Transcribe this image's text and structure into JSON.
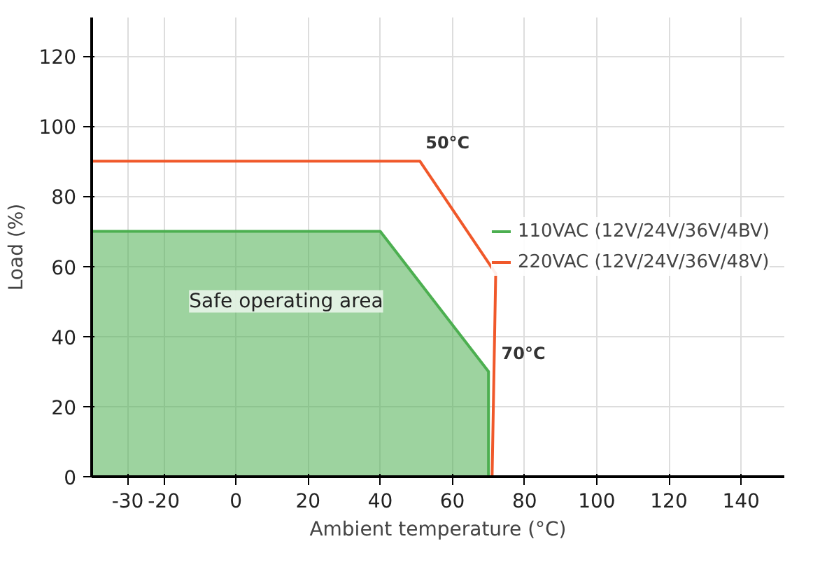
{
  "chart_data": {
    "type": "line",
    "xlabel": "Ambient temperature (°C)",
    "ylabel": "Load (%)",
    "xlim": [
      -40,
      152
    ],
    "ylim": [
      0,
      131
    ],
    "xticks": [
      -30,
      -20,
      0,
      20,
      40,
      60,
      80,
      100,
      120,
      140
    ],
    "yticks": [
      0,
      20,
      40,
      60,
      80,
      100,
      120
    ],
    "grid": true,
    "legend": "right",
    "series": [
      {
        "name": "110VAC (12V/24V/36V/4BV)",
        "type": "area",
        "color": "#4caf50",
        "x": [
          -40,
          40,
          70,
          70
        ],
        "values": [
          70,
          70,
          30,
          0
        ]
      },
      {
        "name": "220VAC (12V/24V/36V/48V)",
        "color": "#f0582a",
        "x": [
          -40,
          51,
          72,
          71
        ],
        "values": [
          90,
          90,
          58,
          0
        ]
      }
    ],
    "annotations": [
      {
        "text": "50°C",
        "x": 51,
        "y": 90
      },
      {
        "text": "70°C",
        "x": 72,
        "y": 30
      },
      "Safe operating area"
    ]
  }
}
